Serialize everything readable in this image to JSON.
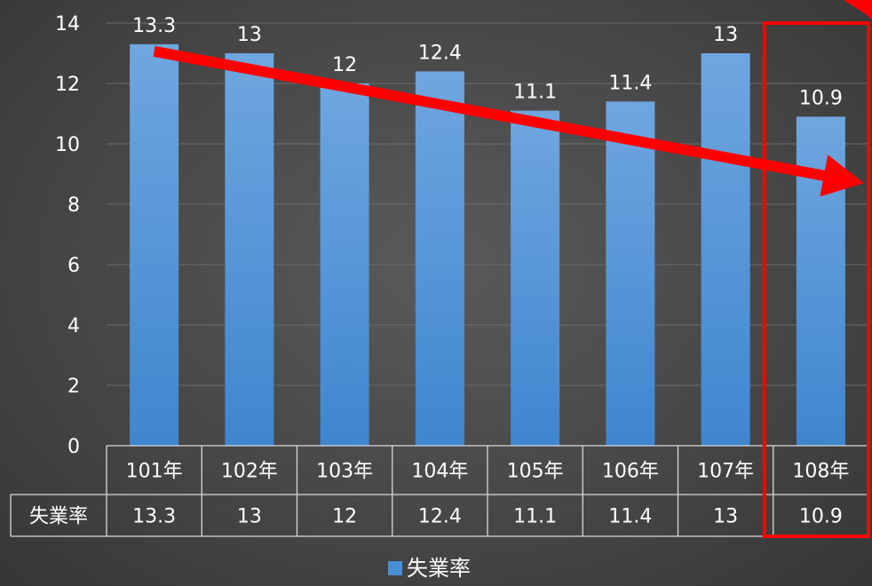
{
  "chart_data": {
    "type": "bar",
    "categories": [
      "101年",
      "102年",
      "103年",
      "104年",
      "105年",
      "106年",
      "107年",
      "108年"
    ],
    "series": [
      {
        "name": "失業率",
        "values": [
          13.3,
          13,
          12,
          12.4,
          11.1,
          11.4,
          13,
          10.9
        ]
      }
    ],
    "data_labels": [
      "13.3",
      "13",
      "12",
      "12.4",
      "11.1",
      "11.4",
      "13",
      "10.9"
    ],
    "yticks": [
      "0",
      "2",
      "4",
      "6",
      "8",
      "10",
      "12",
      "14"
    ],
    "ylim": [
      0,
      14
    ],
    "grid": true,
    "legend": "bottom",
    "data_table": {
      "row_label": "失業率",
      "values": [
        "13.3",
        "13",
        "12",
        "12.4",
        "11.1",
        "11.4",
        "13",
        "10.9"
      ]
    },
    "annotations": [
      {
        "type": "arrow",
        "from_category": "101年",
        "to_category": "108年",
        "color": "#ff0000",
        "meaning": "downward trend"
      },
      {
        "type": "highlight-box",
        "category": "108年",
        "color": "#ff0000"
      }
    ],
    "colors": {
      "bar_top": "#6fa6df",
      "bar_bottom": "#3f86cf",
      "accent": "#ff0000",
      "background": "#474747"
    }
  }
}
